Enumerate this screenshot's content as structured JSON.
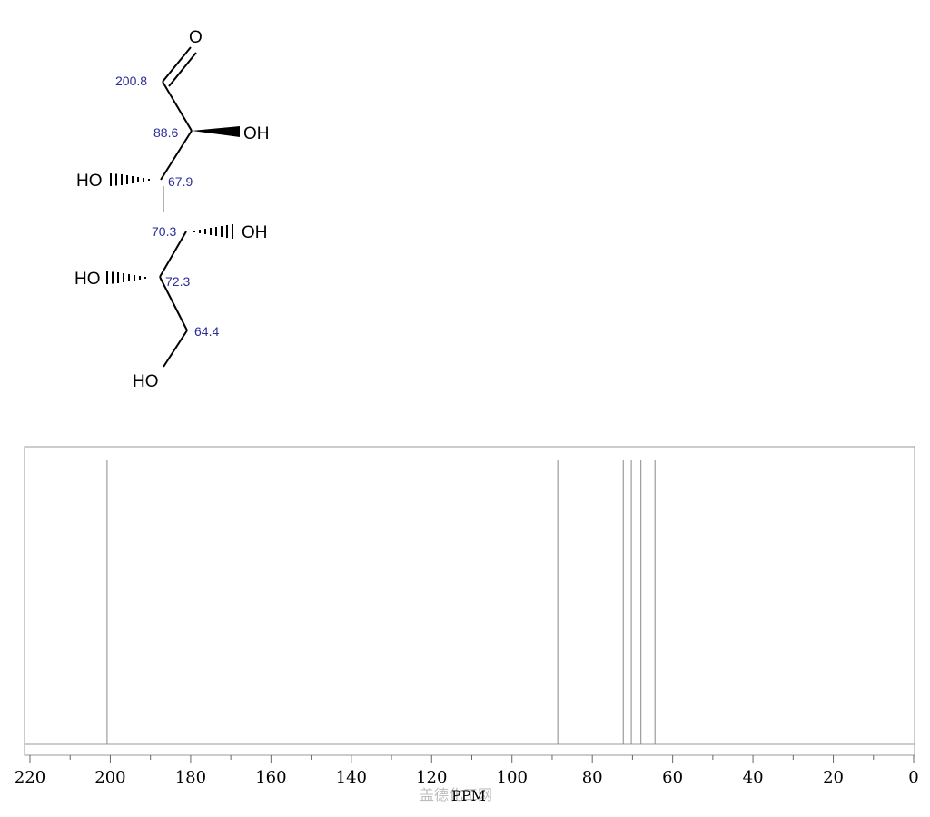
{
  "molecule": {
    "atoms": {
      "o_carbonyl": "O",
      "oh_c2": "OH",
      "ho_c3": "HO",
      "oh_c4": "OH",
      "ho_c5": "HO",
      "ho_c6": "HO"
    },
    "shift_labels": {
      "c1": "200.8",
      "c2": "88.6",
      "c3": "67.9",
      "c4": "70.3",
      "c5": "72.3",
      "c6": "64.4"
    }
  },
  "chart_data": {
    "type": "line",
    "subtype": "nmr-stick-spectrum",
    "xlabel": "PPM",
    "xlim": [
      220,
      0
    ],
    "x_reversed": true,
    "x_ticks": [
      "220",
      "200",
      "180",
      "160",
      "140",
      "120",
      "100",
      "80",
      "60",
      "40",
      "20",
      "0"
    ],
    "minor_tick_step": 10,
    "series": [
      {
        "peaks": [
          {
            "ppm": 200.8,
            "intensity": 1.0
          },
          {
            "ppm": 88.6,
            "intensity": 1.0
          },
          {
            "ppm": 72.3,
            "intensity": 1.0
          },
          {
            "ppm": 70.3,
            "intensity": 1.0
          },
          {
            "ppm": 67.9,
            "intensity": 1.0
          },
          {
            "ppm": 64.4,
            "intensity": 1.0
          }
        ]
      }
    ],
    "grid": false,
    "frame_color": "#999999",
    "peak_color": "#888888"
  },
  "watermark": "盖德化工网"
}
